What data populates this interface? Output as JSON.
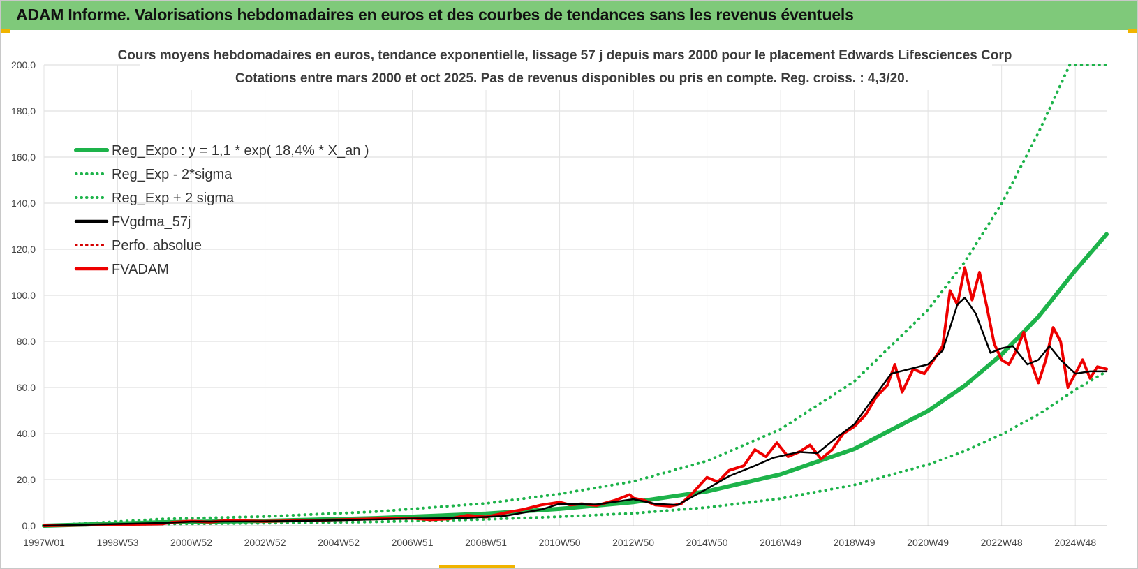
{
  "header": {
    "title": "ADAM Informe. Valorisations hebdomadaires en euros et des courbes de tendances sans les revenus éventuels"
  },
  "chart_data": {
    "type": "line",
    "title": "Cours moyens hebdomadaires en euros, tendance exponentielle, lissage 57 j depuis mars 2000 pour le placement Edwards Lifesciences Corp",
    "subtitle": "Cotations entre mars 2000 et oct 2025.  Pas de revenus disponibles ou pris en compte. Reg. croiss. : 4,3/20.",
    "xlabel": "",
    "ylabel": "",
    "ylim": [
      0,
      200
    ],
    "xlim": [
      1997.0,
      2025.85
    ],
    "grid": true,
    "legend_position": "top-left",
    "y_ticks": [
      "0,0",
      "20,0",
      "40,0",
      "60,0",
      "80,0",
      "100,0",
      "120,0",
      "140,0",
      "160,0",
      "180,0",
      "200,0"
    ],
    "x_ticks": [
      {
        "label": "1997W01",
        "x": 1997.0
      },
      {
        "label": "1998W53",
        "x": 1999.0
      },
      {
        "label": "2000W52",
        "x": 2001.0
      },
      {
        "label": "2002W52",
        "x": 2003.0
      },
      {
        "label": "2004W52",
        "x": 2005.0
      },
      {
        "label": "2006W51",
        "x": 2007.0
      },
      {
        "label": "2008W51",
        "x": 2009.0
      },
      {
        "label": "2010W50",
        "x": 2011.0
      },
      {
        "label": "2012W50",
        "x": 2013.0
      },
      {
        "label": "2014W50",
        "x": 2015.0
      },
      {
        "label": "2016W49",
        "x": 2017.0
      },
      {
        "label": "2018W49",
        "x": 2019.0
      },
      {
        "label": "2020W49",
        "x": 2021.0
      },
      {
        "label": "2022W48",
        "x": 2023.0
      },
      {
        "label": "2024W48",
        "x": 2025.0
      }
    ],
    "series": [
      {
        "name": "Reg_Expo : y = 1,1 * exp( 18,4% *  X_an )",
        "color": "#1db34a",
        "style": "solid",
        "kind": "reg",
        "x": [
          1997.0,
          2000.2,
          2003.0,
          2006.0,
          2009.0,
          2011.0,
          2013.0,
          2015.0,
          2017.0,
          2019.0,
          2021.0,
          2022.0,
          2023.0,
          2024.0,
          2025.0,
          2025.85
        ],
        "values": [
          0,
          1.5,
          2.1,
          3.3,
          5.2,
          7.3,
          10.2,
          14.9,
          22.3,
          33.3,
          49.8,
          60.8,
          74.3,
          90.7,
          110.8,
          126.5
        ]
      },
      {
        "name": "Reg_Exp - 2*sigma",
        "color": "#1db34a",
        "style": "dotted",
        "kind": "low",
        "x": [
          1997.0,
          2000.2,
          2003.0,
          2006.0,
          2009.0,
          2011.0,
          2013.0,
          2015.0,
          2017.0,
          2019.0,
          2021.0,
          2022.0,
          2023.0,
          2024.0,
          2025.0,
          2025.85
        ],
        "values": [
          0,
          0.8,
          1.1,
          1.7,
          2.8,
          3.9,
          5.4,
          7.9,
          11.8,
          17.7,
          26.5,
          32.4,
          39.6,
          48.3,
          59.0,
          67.0
        ]
      },
      {
        "name": "Reg_Exp + 2 sigma",
        "color": "#1db34a",
        "style": "dotted",
        "kind": "high",
        "x": [
          1997.0,
          2000.2,
          2003.0,
          2006.0,
          2009.0,
          2011.0,
          2013.0,
          2015.0,
          2017.0,
          2019.0,
          2021.0,
          2022.0,
          2023.0,
          2024.0,
          2024.85,
          2025.85
        ],
        "values": [
          0,
          2.9,
          4.0,
          6.1,
          9.7,
          13.8,
          19.2,
          28.1,
          41.9,
          62.6,
          93.6,
          114.5,
          139.7,
          170.6,
          200.0,
          200.0
        ]
      },
      {
        "name": "FVgdma_57j",
        "color": "#000000",
        "style": "solid",
        "kind": "smooth",
        "x": [
          1997.0,
          2000.2,
          2001.0,
          2003.0,
          2005.0,
          2007.0,
          2008.5,
          2009.5,
          2010.5,
          2011.0,
          2012.0,
          2013.0,
          2013.6,
          2014.2,
          2015.0,
          2015.6,
          2016.3,
          2016.8,
          2017.5,
          2018.0,
          2018.5,
          2019.0,
          2019.5,
          2020.0,
          2020.5,
          2021.0,
          2021.4,
          2021.8,
          2022.0,
          2022.3,
          2022.7,
          2023.0,
          2023.3,
          2023.7,
          2024.0,
          2024.3,
          2024.6,
          2025.0,
          2025.4,
          2025.85
        ],
        "values": [
          0,
          1.2,
          1.8,
          1.9,
          2.4,
          3.1,
          3.4,
          4.2,
          7.0,
          9.5,
          9.2,
          11.5,
          9.5,
          9.0,
          16.0,
          21.5,
          26.0,
          29.5,
          32.0,
          31.5,
          38.0,
          44.0,
          55.0,
          66.0,
          68.0,
          70.0,
          76.0,
          96.0,
          99.0,
          92.0,
          75.0,
          77.0,
          78.0,
          70.0,
          72.0,
          78.0,
          72.0,
          66.0,
          67.0,
          67.0
        ]
      },
      {
        "name": "Perfo. absolue",
        "color": "#d40000",
        "style": "dotted",
        "kind": "perf",
        "x": [],
        "values": []
      },
      {
        "name": "FVADAM",
        "color": "#ee0000",
        "style": "solid",
        "kind": "price",
        "x": [
          1997.0,
          2000.2,
          2000.5,
          2001.0,
          2001.5,
          2002.0,
          2003.0,
          2004.0,
          2005.0,
          2006.0,
          2007.0,
          2007.5,
          2008.0,
          2008.5,
          2009.0,
          2009.5,
          2010.0,
          2010.5,
          2011.0,
          2011.3,
          2011.6,
          2012.0,
          2012.5,
          2012.9,
          2013.0,
          2013.3,
          2013.6,
          2014.0,
          2014.3,
          2014.6,
          2015.0,
          2015.3,
          2015.6,
          2016.0,
          2016.3,
          2016.6,
          2016.9,
          2017.2,
          2017.5,
          2017.8,
          2018.1,
          2018.4,
          2018.7,
          2019.0,
          2019.3,
          2019.6,
          2019.9,
          2020.1,
          2020.3,
          2020.6,
          2020.9,
          2021.2,
          2021.4,
          2021.6,
          2021.8,
          2022.0,
          2022.2,
          2022.4,
          2022.6,
          2022.8,
          2023.0,
          2023.2,
          2023.4,
          2023.6,
          2023.8,
          2024.0,
          2024.2,
          2024.4,
          2024.6,
          2024.8,
          2025.0,
          2025.2,
          2025.4,
          2025.6,
          2025.85
        ],
        "values": [
          0,
          0.8,
          1.5,
          2.0,
          1.6,
          2.3,
          1.9,
          2.2,
          2.6,
          3.0,
          3.2,
          2.6,
          3.0,
          4.5,
          3.8,
          5.5,
          7.0,
          9.0,
          10.2,
          9.0,
          9.5,
          8.8,
          11.0,
          13.5,
          12.0,
          11.0,
          9.0,
          8.5,
          9.5,
          14.0,
          21.0,
          19.0,
          24.0,
          26.0,
          33.0,
          30.0,
          36.0,
          30.0,
          32.0,
          35.0,
          29.0,
          33.0,
          40.0,
          43.0,
          48.0,
          56.0,
          61.0,
          70.0,
          58.0,
          68.0,
          66.0,
          73.0,
          78.0,
          102.0,
          96.0,
          112.0,
          98.0,
          110.0,
          95.0,
          79.0,
          72.0,
          70.0,
          76.0,
          84.0,
          71.0,
          62.0,
          72.0,
          86.0,
          80.0,
          60.0,
          66.0,
          72.0,
          64.0,
          69.0,
          68.0
        ]
      }
    ]
  }
}
